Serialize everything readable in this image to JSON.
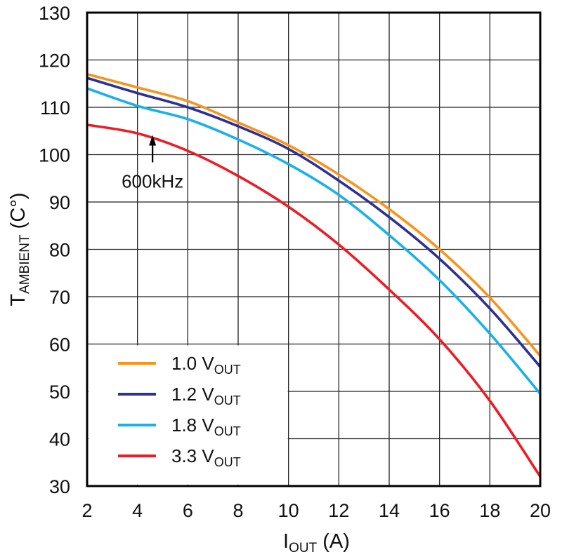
{
  "chart_data": {
    "type": "line",
    "xlabel": {
      "main": "I",
      "sub": "OUT",
      "unit": " (A)"
    },
    "ylabel": {
      "main": "T",
      "sub": "AMBIENT",
      "unit": " (C°)"
    },
    "xlim": [
      2,
      20
    ],
    "ylim": [
      30,
      130
    ],
    "x_ticks": [
      2,
      4,
      6,
      8,
      10,
      12,
      14,
      16,
      18,
      20
    ],
    "y_ticks": [
      30,
      40,
      50,
      60,
      70,
      80,
      90,
      100,
      110,
      120,
      130
    ],
    "grid": true,
    "legend": {
      "placement": "bottom-left"
    },
    "annotation": {
      "text": "600kHz",
      "x": 4.6,
      "y": 104
    },
    "series": [
      {
        "name": "1.0 V",
        "name_sub": "OUT",
        "color": "#f7941d",
        "x": [
          2,
          4,
          6,
          8,
          10,
          12,
          14,
          16,
          18,
          20
        ],
        "y": [
          117,
          114.2,
          111.3,
          106.8,
          102,
          95.8,
          88.5,
          80,
          69.8,
          57.5
        ]
      },
      {
        "name": "1.2 V",
        "name_sub": "OUT",
        "color": "#2e3192",
        "x": [
          2,
          4,
          6,
          8,
          10,
          12,
          14,
          16,
          18,
          20
        ],
        "y": [
          116.2,
          113,
          110,
          106,
          101.2,
          94.5,
          86.8,
          78,
          67.5,
          55.2
        ]
      },
      {
        "name": "1.8 V",
        "name_sub": "OUT",
        "color": "#1ab0ea",
        "x": [
          2,
          4,
          6,
          8,
          10,
          12,
          14,
          16,
          18,
          20
        ],
        "y": [
          114,
          110.3,
          107.5,
          103.2,
          98,
          91.5,
          83,
          73.5,
          62.2,
          49.5
        ]
      },
      {
        "name": "3.3 V",
        "name_sub": "OUT",
        "color": "#ed1c24",
        "x": [
          2,
          4,
          6,
          8,
          10,
          12,
          14,
          16,
          18,
          20
        ],
        "y": [
          106.3,
          104.5,
          100.8,
          95.5,
          89,
          81,
          71.5,
          61,
          48,
          32
        ]
      }
    ]
  }
}
